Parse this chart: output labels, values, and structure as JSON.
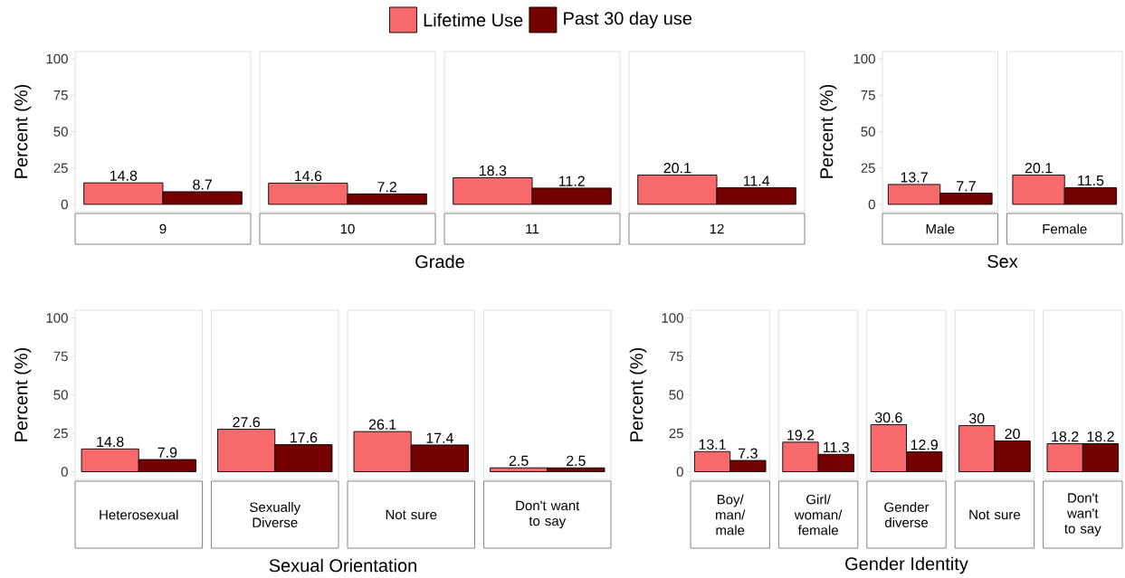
{
  "chart_data": [
    {
      "type": "bar",
      "xlabel": "Grade",
      "ylabel": "Percent (%)",
      "categories": [
        "9",
        "10",
        "11",
        "12"
      ],
      "series": [
        {
          "name": "Lifetime Use",
          "color": "#f8696b",
          "values": [
            14.8,
            14.6,
            18.3,
            20.1
          ]
        },
        {
          "name": "Past 30 day use",
          "color": "#750000",
          "values": [
            8.7,
            7.2,
            11.2,
            11.4
          ]
        }
      ],
      "ylim": [
        -5,
        105
      ],
      "yticks": [
        0,
        25,
        50,
        75,
        100
      ],
      "data_labels": true,
      "legend": "top"
    },
    {
      "type": "bar",
      "xlabel": "Sex",
      "ylabel": "Percent (%)",
      "categories": [
        "Male",
        "Female"
      ],
      "series": [
        {
          "color": "#f8696b",
          "values": [
            13.7,
            20.1
          ]
        },
        {
          "color": "#750000",
          "values": [
            7.7,
            11.5
          ]
        }
      ],
      "ylim": [
        -5,
        105
      ],
      "yticks": [
        0,
        25,
        50,
        75,
        100
      ],
      "data_labels": true
    },
    {
      "type": "bar",
      "xlabel": "Sexual Orientation",
      "ylabel": "Percent (%)",
      "categories": [
        "Heterosexual",
        "Sexually Diverse",
        "Not sure",
        "Don't want to say"
      ],
      "series": [
        {
          "color": "#f8696b",
          "values": [
            14.8,
            27.6,
            26.1,
            2.5
          ]
        },
        {
          "color": "#750000",
          "values": [
            7.9,
            17.6,
            17.4,
            2.5
          ]
        }
      ],
      "ylim": [
        -5,
        105
      ],
      "yticks": [
        0,
        25,
        50,
        75,
        100
      ],
      "data_labels": true
    },
    {
      "type": "bar",
      "xlabel": "Gender Identity",
      "ylabel": "Percent (%)",
      "categories": [
        "Boy/ man/ male",
        "Girl/ woman/ female",
        "Gender diverse",
        "Not sure",
        "Don't wan't to say"
      ],
      "series": [
        {
          "color": "#f8696b",
          "values": [
            13.1,
            19.2,
            30.6,
            30,
            18.2
          ]
        },
        {
          "color": "#750000",
          "values": [
            7.3,
            11.3,
            12.9,
            20,
            18.2
          ]
        }
      ],
      "ylim": [
        -5,
        105
      ],
      "yticks": [
        0,
        25,
        50,
        75,
        100
      ],
      "data_labels": true
    }
  ]
}
